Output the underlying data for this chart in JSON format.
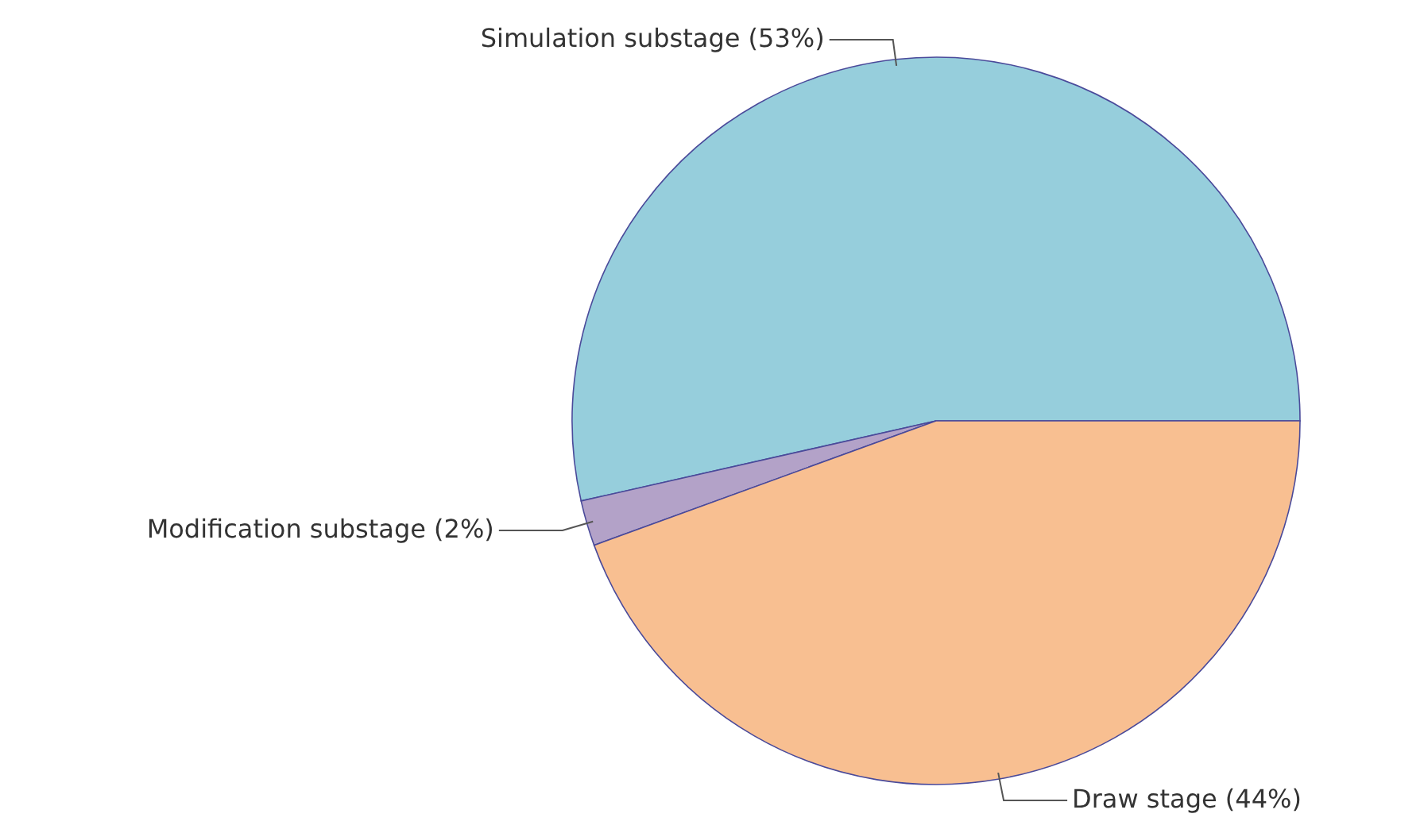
{
  "chart_data": {
    "type": "pie",
    "categories": [
      "Simulation substage (53%)",
      "Modification substage (2%)",
      "Draw stage (44%)"
    ],
    "values": [
      53,
      2,
      44
    ],
    "colors": [
      "#96cedc",
      "#b3a2c8",
      "#f8bf91"
    ]
  }
}
